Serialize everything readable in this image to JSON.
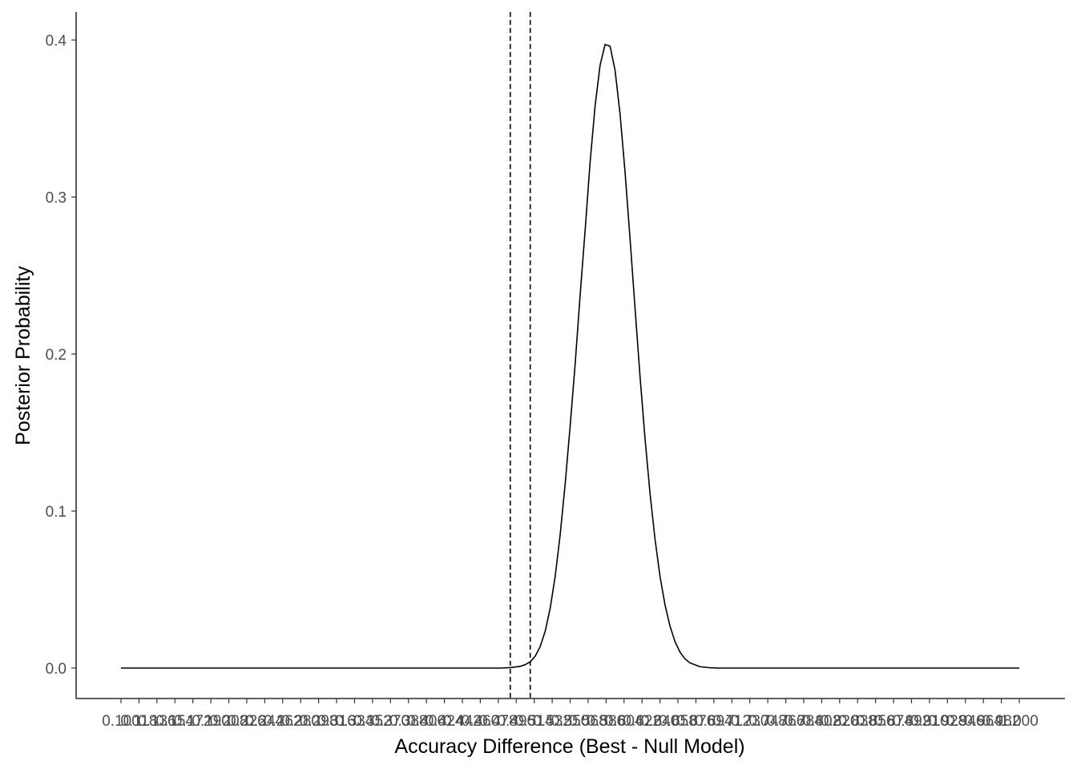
{
  "chart_data": {
    "type": "line",
    "title": "",
    "xlabel": "Accuracy Difference (Best - Null Model)",
    "ylabel": "Posterior Probability",
    "xlim": [
      0.1,
      1.0
    ],
    "ylim": [
      0.0,
      0.4
    ],
    "y_ticks": [
      0.0,
      0.1,
      0.2,
      0.3,
      0.4
    ],
    "y_tick_labels": [
      "0.0",
      "0.1",
      "0.2",
      "0.3",
      "0.4"
    ],
    "x_tick_labels": [
      "0.100",
      "0.118",
      "0.136",
      "0.154",
      "0.172",
      "0.190",
      "0.208",
      "0.226",
      "0.244",
      "0.262",
      "0.280",
      "0.298",
      "0.316",
      "0.334",
      "0.352",
      "0.370",
      "0.388",
      "0.406",
      "0.424",
      "0.442",
      "0.460",
      "0.478",
      "0.496",
      "0.514",
      "0.532",
      "0.550",
      "0.568",
      "0.586",
      "0.604",
      "0.622",
      "0.640",
      "0.658",
      "0.676",
      "0.694",
      "0.712",
      "0.730",
      "0.748",
      "0.766",
      "0.784",
      "0.802",
      "0.820",
      "0.838",
      "0.856",
      "0.874",
      "0.892",
      "0.910",
      "0.928",
      "0.946",
      "0.964",
      "0.982",
      "1.000"
    ],
    "grid": false,
    "legend": "none",
    "series": [
      {
        "line_style": "solid",
        "color": "#000000",
        "x": [
          0.1,
          0.2,
          0.3,
          0.4,
          0.45,
          0.48,
          0.49,
          0.5,
          0.505,
          0.51,
          0.515,
          0.52,
          0.525,
          0.53,
          0.535,
          0.54,
          0.545,
          0.55,
          0.555,
          0.56,
          0.565,
          0.57,
          0.575,
          0.58,
          0.585,
          0.59,
          0.595,
          0.6,
          0.605,
          0.61,
          0.615,
          0.62,
          0.625,
          0.63,
          0.635,
          0.64,
          0.645,
          0.65,
          0.655,
          0.66,
          0.665,
          0.67,
          0.68,
          0.69,
          0.7,
          0.8,
          0.9,
          1.0
        ],
        "y": [
          0.0,
          0.0,
          0.0,
          0.0,
          0.0,
          0.0,
          0.0003,
          0.0011,
          0.0022,
          0.004,
          0.0076,
          0.0137,
          0.0235,
          0.0381,
          0.0584,
          0.0849,
          0.1172,
          0.1542,
          0.1935,
          0.2376,
          0.2788,
          0.3222,
          0.3582,
          0.384,
          0.3972,
          0.3961,
          0.3807,
          0.3529,
          0.3159,
          0.2735,
          0.2293,
          0.1859,
          0.1463,
          0.1114,
          0.0823,
          0.0585,
          0.0404,
          0.0268,
          0.0169,
          0.0102,
          0.0059,
          0.0033,
          0.0009,
          0.0002,
          0.0,
          0.0,
          0.0,
          0.0
        ]
      }
    ],
    "reference_lines": [
      {
        "axis": "x",
        "value": 0.49,
        "line_style": "dashed",
        "color": "#000000"
      },
      {
        "axis": "x",
        "value": 0.51,
        "line_style": "dashed",
        "color": "#000000"
      }
    ]
  }
}
